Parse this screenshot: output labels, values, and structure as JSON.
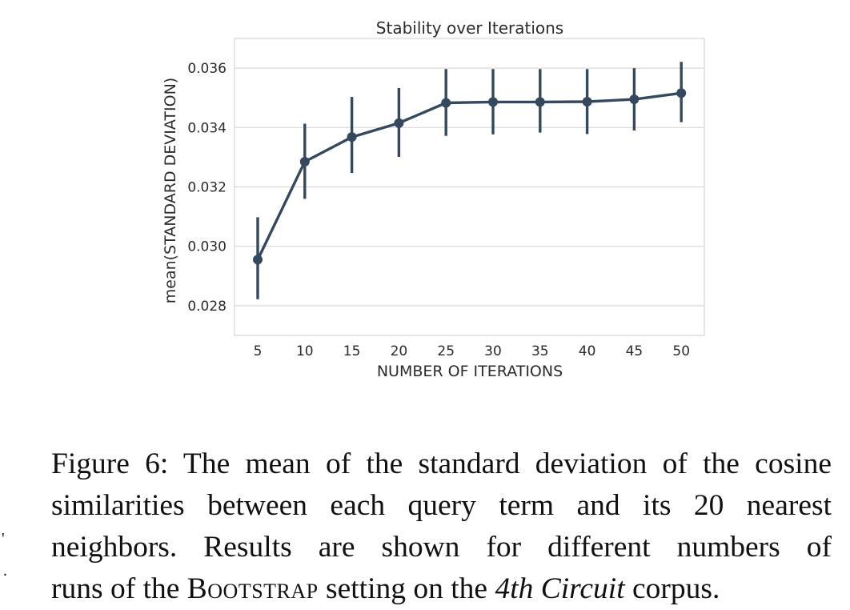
{
  "chart_data": {
    "type": "line",
    "title": "Stability over Iterations",
    "xlabel": "NUMBER OF ITERATIONS",
    "ylabel": "mean(STANDARD DEVIATION)",
    "categories": [
      "5",
      "10",
      "15",
      "20",
      "25",
      "30",
      "35",
      "40",
      "45",
      "50"
    ],
    "values": [
      0.02955,
      0.03285,
      0.03368,
      0.03415,
      0.03483,
      0.03486,
      0.03486,
      0.03487,
      0.03495,
      0.03516
    ],
    "error_low": [
      0.02822,
      0.0316,
      0.03247,
      0.03301,
      0.03372,
      0.03377,
      0.03383,
      0.03378,
      0.0339,
      0.03418
    ],
    "error_high": [
      0.03098,
      0.03413,
      0.03503,
      0.03533,
      0.03597,
      0.03597,
      0.03597,
      0.03597,
      0.036,
      0.03621
    ],
    "ylim": [
      0.027,
      0.037
    ],
    "yticks": [
      "0.028",
      "0.030",
      "0.032",
      "0.034",
      "0.036"
    ],
    "grid": true,
    "line_color": "#34495e"
  },
  "caption": {
    "line1": "Figure 6: The mean of the standard deviation of the cosine",
    "line2": "similarities between each query term and its 20 nearest",
    "line3": "neighbors.  Results are shown for different numbers of",
    "line4_a": "runs of the ",
    "line4_b": "Bootstrap",
    "line4_c": " setting on the ",
    "line4_d": "4th Circuit",
    "line4_e": " corpus."
  },
  "margin_marks": {
    "mark1": "'",
    "mark2": "."
  }
}
